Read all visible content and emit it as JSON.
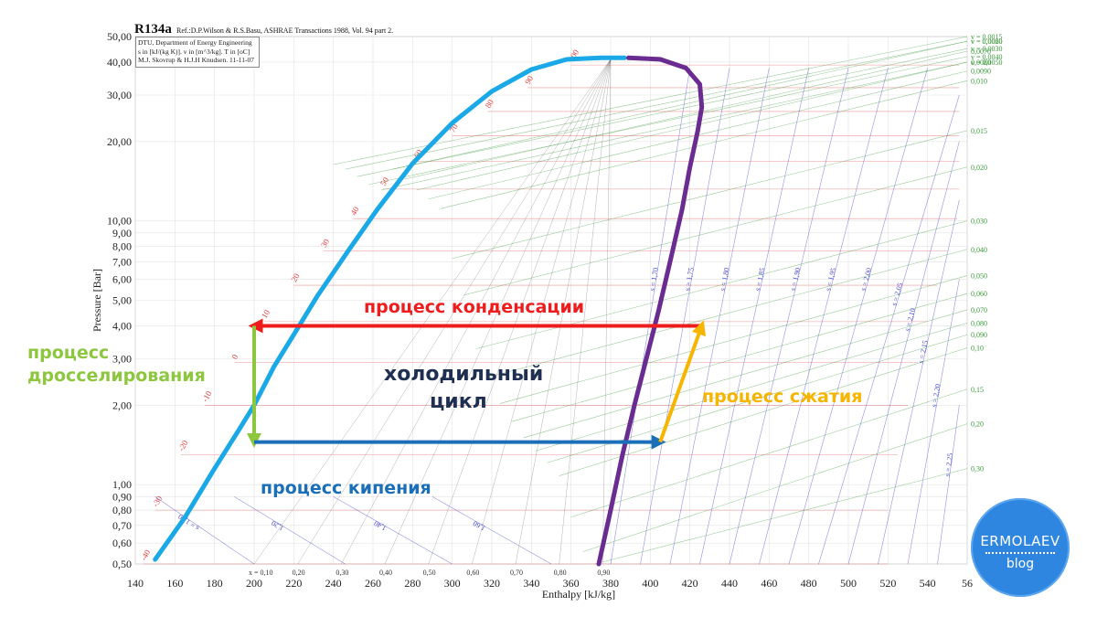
{
  "header": {
    "title": "R134a",
    "reference": "Ref.:D.P.Wilson & R.S.Basu, ASHRAE Transactions 1988, Vol. 94 part 2.",
    "info_lines": [
      "DTU, Department of Energy Engineering",
      "s in [kJ/(kg K)]. v in [m^3/kg]. T in [oC]",
      "M.J. Skovrup & H.J.H Knudsen. 11-11-07"
    ]
  },
  "annotations": {
    "condensation": "процесс конденсации",
    "throttling_line1": "процесс",
    "throttling_line2": "дросселирования",
    "cycle_line1": "холодильный",
    "cycle_line2": "цикл",
    "compression": "процесс сжатия",
    "boiling": "процесс кипения"
  },
  "badge": {
    "name": "ERMOLAEV",
    "subtitle": "blog"
  },
  "colors": {
    "liquid_line": "#1aa9e6",
    "vapor_line": "#6a2c91",
    "condensation": "#ee1c1c",
    "throttling": "#8dc63f",
    "boiling": "#1a6fb8",
    "compression": "#f7b500",
    "isotherm": "#e04040",
    "isochore": "#3a9a3a",
    "isentrope": "#4a4ad0",
    "quality": "#555555",
    "badge": "#2f86e0"
  },
  "chart_data": {
    "type": "line",
    "xlabel": "Enthalpy [kJ/kg]",
    "ylabel": "Pressure [Bar]",
    "xlim": [
      140,
      560
    ],
    "ylim": [
      0.5,
      50
    ],
    "y_scale": "log",
    "x_ticks": [
      "140",
      "160",
      "180",
      "200",
      "220",
      "240",
      "260",
      "280",
      "300",
      "320",
      "340",
      "360",
      "380",
      "400",
      "420",
      "440",
      "460",
      "480",
      "500",
      "520",
      "540",
      "56"
    ],
    "y_ticks": [
      {
        "p": 0.5,
        "label": "0,50"
      },
      {
        "p": 0.6,
        "label": "0,60"
      },
      {
        "p": 0.7,
        "label": "0,70"
      },
      {
        "p": 0.8,
        "label": "0,80"
      },
      {
        "p": 0.9,
        "label": "0,90"
      },
      {
        "p": 1.0,
        "label": "1,00"
      },
      {
        "p": 2.0,
        "label": "2,00"
      },
      {
        "p": 3.0,
        "label": "3,00"
      },
      {
        "p": 4.0,
        "label": "4,00"
      },
      {
        "p": 5.0,
        "label": "5,00"
      },
      {
        "p": 6.0,
        "label": "6,00"
      },
      {
        "p": 7.0,
        "label": "7,00"
      },
      {
        "p": 8.0,
        "label": "8,00"
      },
      {
        "p": 9.0,
        "label": "9,00"
      },
      {
        "p": 10.0,
        "label": "10,00"
      },
      {
        "p": 20.0,
        "label": "20,00"
      },
      {
        "p": 30.0,
        "label": "30,00"
      },
      {
        "p": 40.0,
        "label": "40,00"
      },
      {
        "p": 50.0,
        "label": "50,00"
      }
    ],
    "grid": true,
    "saturation_liquid": [
      [
        150,
        0.52
      ],
      [
        165,
        0.75
      ],
      [
        180,
        1.15
      ],
      [
        192,
        1.6
      ],
      [
        200,
        2.0
      ],
      [
        210,
        2.8
      ],
      [
        220,
        3.7
      ],
      [
        232,
        5.2
      ],
      [
        248,
        7.8
      ],
      [
        262,
        11
      ],
      [
        280,
        16.5
      ],
      [
        300,
        23.5
      ],
      [
        320,
        31
      ],
      [
        340,
        37.5
      ],
      [
        358,
        41
      ],
      [
        375,
        41.5
      ],
      [
        387,
        41.5
      ]
    ],
    "saturation_vapor": [
      [
        389,
        41.5
      ],
      [
        405,
        41
      ],
      [
        418,
        38
      ],
      [
        425,
        33
      ],
      [
        426,
        27
      ],
      [
        424,
        22
      ],
      [
        420,
        16
      ],
      [
        416,
        11
      ],
      [
        410,
        7
      ],
      [
        404,
        4.5
      ],
      [
        398,
        3
      ],
      [
        392,
        2
      ],
      [
        386,
        1.3
      ],
      [
        380,
        0.8
      ],
      [
        374,
        0.5
      ]
    ],
    "cycle": {
      "condensation": {
        "from": [
          426,
          4.0
        ],
        "to": [
          200,
          4.0
        ]
      },
      "throttling": {
        "from": [
          200,
          4.0
        ],
        "to": [
          200,
          1.45
        ]
      },
      "boiling": {
        "from": [
          200,
          1.45
        ],
        "to": [
          405,
          1.45
        ]
      },
      "compression": {
        "from": [
          405,
          1.45
        ],
        "to": [
          426,
          4.0
        ]
      }
    },
    "isotherms": [
      {
        "label": "-40",
        "h": [
          144,
          520
        ],
        "p": [
          0.5,
          0.5
        ]
      },
      {
        "label": "-30",
        "h": [
          150,
          520
        ],
        "p": [
          0.8,
          0.8
        ]
      },
      {
        "label": "-20",
        "h": [
          163,
          525
        ],
        "p": [
          1.3,
          1.3
        ]
      },
      {
        "label": "-10",
        "h": [
          175,
          530
        ],
        "p": [
          2.0,
          2.0
        ]
      },
      {
        "label": "0",
        "h": [
          190,
          535
        ],
        "p": [
          2.9,
          2.9
        ]
      },
      {
        "label": "10",
        "h": [
          205,
          540
        ],
        "p": [
          4.15,
          4.15
        ]
      },
      {
        "label": "20",
        "h": [
          220,
          545
        ],
        "p": [
          5.7,
          5.7
        ]
      },
      {
        "label": "30",
        "h": [
          235,
          550
        ],
        "p": [
          7.7,
          7.7
        ]
      },
      {
        "label": "40",
        "h": [
          250,
          555
        ],
        "p": [
          10.2,
          10.2
        ]
      },
      {
        "label": "50",
        "h": [
          265,
          556
        ],
        "p": [
          13.2,
          13.2
        ]
      },
      {
        "label": "60",
        "h": [
          282,
          556
        ],
        "p": [
          16.8,
          16.8
        ]
      },
      {
        "label": "70",
        "h": [
          300,
          556
        ],
        "p": [
          21,
          21
        ]
      },
      {
        "label": "80",
        "h": [
          318,
          556
        ],
        "p": [
          26,
          26
        ]
      },
      {
        "label": "90",
        "h": [
          338,
          556
        ],
        "p": [
          32,
          32
        ]
      },
      {
        "label": "100",
        "h": [
          360,
          556
        ],
        "p": [
          39,
          39
        ]
      }
    ],
    "isentropes": [
      {
        "label": "s = 1,00",
        "h": [
          200,
          150
        ],
        "p": [
          0.5,
          0.9
        ]
      },
      {
        "label": "1,20",
        "h": [
          246,
          190
        ],
        "p": [
          0.5,
          0.9
        ]
      },
      {
        "label": "1,40",
        "h": [
          300,
          240
        ],
        "p": [
          0.5,
          0.9
        ]
      },
      {
        "label": "1,60",
        "h": [
          350,
          290
        ],
        "p": [
          0.5,
          0.9
        ]
      },
      {
        "label": "s = 1,70",
        "h": [
          380,
          420
        ],
        "p": [
          0.5,
          38
        ]
      },
      {
        "label": "s = 1,75",
        "h": [
          395,
          440
        ],
        "p": [
          0.5,
          38
        ]
      },
      {
        "label": "s = 1,80",
        "h": [
          410,
          460
        ],
        "p": [
          0.5,
          38
        ]
      },
      {
        "label": "s = 1,85",
        "h": [
          425,
          480
        ],
        "p": [
          0.5,
          38
        ]
      },
      {
        "label": "s = 1,90",
        "h": [
          440,
          500
        ],
        "p": [
          0.5,
          38
        ]
      },
      {
        "label": "s = 1,95",
        "h": [
          455,
          520
        ],
        "p": [
          0.5,
          38
        ]
      },
      {
        "label": "s = 2,00",
        "h": [
          470,
          540
        ],
        "p": [
          0.5,
          38
        ]
      },
      {
        "label": "s = 2,05",
        "h": [
          485,
          556
        ],
        "p": [
          0.5,
          30
        ]
      },
      {
        "label": "s = 2,10",
        "h": [
          500,
          556
        ],
        "p": [
          0.5,
          20
        ]
      },
      {
        "label": "s = 2,15",
        "h": [
          515,
          556
        ],
        "p": [
          0.5,
          12
        ]
      },
      {
        "label": "s = 2,20",
        "h": [
          530,
          556
        ],
        "p": [
          0.5,
          6
        ]
      },
      {
        "label": "s = 2,25",
        "h": [
          545,
          556
        ],
        "p": [
          0.5,
          2
        ]
      }
    ],
    "isochores": [
      {
        "label": "v = 0,0015",
        "p_at_556": 50
      },
      {
        "label": "v = 0,0020",
        "p_at_556": 48
      },
      {
        "label": "v = 0,0030",
        "p_at_556": 45
      },
      {
        "label": "v = 0,0040",
        "p_at_556": 42
      },
      {
        "label": "v = 0,0050",
        "p_at_556": 40
      },
      {
        "label": "v = 0,0060",
        "p_at_556": 48
      },
      {
        "label": "0,0070",
        "p_at_556": 44
      },
      {
        "label": "0,0080",
        "p_at_556": 40
      },
      {
        "label": "0,0090",
        "p_at_556": 37
      },
      {
        "label": "0,010",
        "p_at_556": 34
      },
      {
        "label": "0,015",
        "p_at_556": 22
      },
      {
        "label": "0,020",
        "p_at_556": 16
      },
      {
        "label": "0,030",
        "p_at_556": 10
      },
      {
        "label": "0,040",
        "p_at_556": 7.8
      },
      {
        "label": "0,050",
        "p_at_556": 6.2
      },
      {
        "label": "0,060",
        "p_at_556": 5.3
      },
      {
        "label": "0,070",
        "p_at_556": 4.6
      },
      {
        "label": "0,080",
        "p_at_556": 4.1
      },
      {
        "label": "0,090",
        "p_at_556": 3.7
      },
      {
        "label": "0,10",
        "p_at_556": 3.3
      },
      {
        "label": "0,15",
        "p_at_556": 2.3
      },
      {
        "label": "0,20",
        "p_at_556": 1.7
      },
      {
        "label": "0,30",
        "p_at_556": 1.15
      }
    ],
    "quality_labels": [
      "x = 0,10",
      "0,20",
      "0,30",
      "0,40",
      "0,50",
      "0,60",
      "0,70",
      "0,80",
      "0,90"
    ]
  }
}
